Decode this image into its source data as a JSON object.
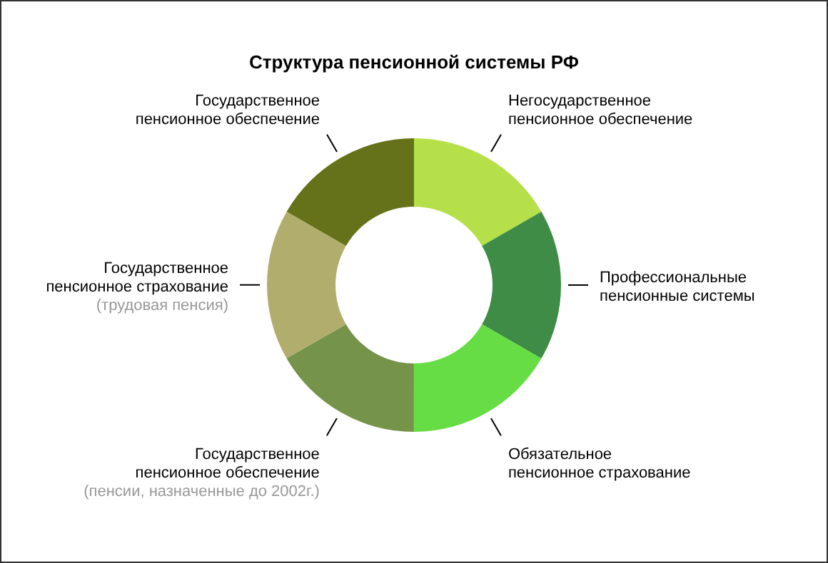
{
  "chart_data": {
    "type": "donut",
    "title": "Структура пенсионной системы РФ",
    "categories": [
      "Негосударственное\nпенсионное обеспечение",
      "Профессиональные\nпенсионные системы",
      "Обязательное\nпенсионное страхование",
      "Государственное\nпенсионное обеспечение\n(пенсии, назначенные до 2002г.)",
      "Государственное\nпенсионное страхование\n(трудовая пенсия)",
      "Государственное\nпенсионное обеспечение"
    ],
    "values": [
      16.67,
      16.67,
      16.67,
      16.67,
      16.66,
      16.66
    ],
    "colors": [
      "#b5e04a",
      "#3e8c45",
      "#66dd44",
      "#76934a",
      "#b0ad6d",
      "#667219"
    ]
  }
}
